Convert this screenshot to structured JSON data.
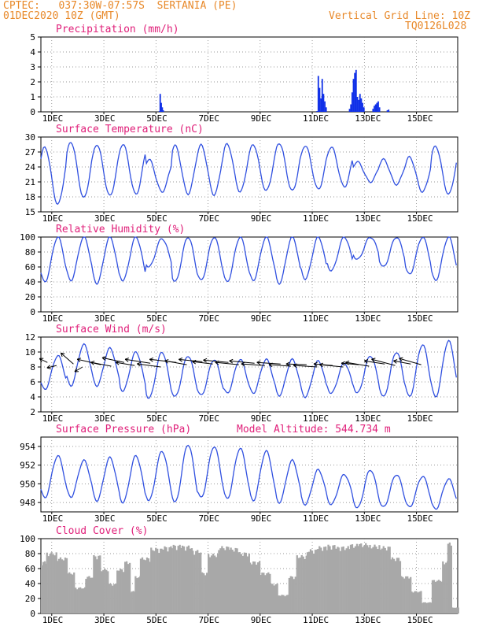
{
  "header": {
    "line1_left": "CPTEC:   037:30W-07:57S  SERTANIA (PE)",
    "line2_left": "01DEC2020 10Z (GMT)",
    "line1_right": "Vertical Grid Line: 10Z",
    "line2_right": "TQ0126L028"
  },
  "extra_label": "Model Altitude: 544.734 m",
  "colors": {
    "header": "#e8892a",
    "title": "#e0207a",
    "line": "#3050e0",
    "bar": "#1030e8",
    "cloud": "#a8a8a8",
    "arrow": "#000000"
  },
  "x_tick_labels": [
    "1DEC",
    "3DEC",
    "5DEC",
    "7DEC",
    "9DEC",
    "11DEC",
    "13DEC",
    "15DEC"
  ],
  "chart_data": [
    {
      "type": "bar",
      "title": "Precipitation (mm/h)",
      "ylim": [
        0,
        5
      ],
      "yticks": [
        "0",
        "1",
        "2",
        "3",
        "4",
        "5"
      ],
      "x_unit": "days since 01DEC 00Z",
      "points": [
        [
          4.55,
          0.05
        ],
        [
          4.58,
          1.2
        ],
        [
          4.62,
          0.6
        ],
        [
          4.66,
          0.3
        ],
        [
          4.7,
          0.1
        ],
        [
          10.6,
          0.05
        ],
        [
          10.65,
          2.4
        ],
        [
          10.7,
          1.6
        ],
        [
          10.75,
          0.9
        ],
        [
          10.8,
          2.2
        ],
        [
          10.85,
          1.2
        ],
        [
          10.9,
          0.7
        ],
        [
          10.95,
          0.3
        ],
        [
          11.85,
          0.2
        ],
        [
          11.9,
          0.5
        ],
        [
          11.95,
          1.3
        ],
        [
          12.0,
          2.2
        ],
        [
          12.05,
          2.6
        ],
        [
          12.1,
          2.8
        ],
        [
          12.15,
          1.0
        ],
        [
          12.2,
          0.8
        ],
        [
          12.25,
          1.2
        ],
        [
          12.3,
          0.9
        ],
        [
          12.35,
          0.6
        ],
        [
          12.4,
          0.3
        ],
        [
          12.75,
          0.2
        ],
        [
          12.8,
          0.4
        ],
        [
          12.85,
          0.5
        ],
        [
          12.9,
          0.6
        ],
        [
          12.95,
          0.7
        ],
        [
          13.0,
          0.3
        ],
        [
          13.3,
          0.1
        ],
        [
          13.35,
          0.15
        ]
      ]
    },
    {
      "type": "line",
      "title": "Surface Temperature (nC)",
      "ylim": [
        15,
        30
      ],
      "yticks": [
        "15",
        "18",
        "21",
        "24",
        "27",
        "30"
      ],
      "daily": [
        [
          16.5,
          28
        ],
        [
          17.8,
          29
        ],
        [
          18.2,
          28.5
        ],
        [
          18.5,
          28.6
        ],
        [
          19.0,
          25.5
        ],
        [
          18.6,
          28.3
        ],
        [
          18.4,
          28.4
        ],
        [
          19.0,
          28.6
        ],
        [
          19.2,
          28.5
        ],
        [
          19.2,
          28.8
        ],
        [
          19.5,
          28.3
        ],
        [
          20.0,
          28.0
        ],
        [
          21.0,
          25.0
        ],
        [
          20.5,
          25.5
        ],
        [
          19.0,
          26.0
        ],
        [
          18.5,
          28.2
        ],
        [
          18.8,
          28.0
        ]
      ]
    },
    {
      "type": "line",
      "title": "Relative Humidity (%)",
      "ylim": [
        0,
        100
      ],
      "yticks": [
        "0",
        "20",
        "40",
        "60",
        "80",
        "100"
      ],
      "daily": [
        [
          100,
          40
        ],
        [
          100,
          42
        ],
        [
          100,
          38
        ],
        [
          100,
          42
        ],
        [
          98,
          60
        ],
        [
          100,
          40
        ],
        [
          100,
          42
        ],
        [
          100,
          40
        ],
        [
          100,
          42
        ],
        [
          100,
          38
        ],
        [
          100,
          44
        ],
        [
          100,
          55
        ],
        [
          100,
          70
        ],
        [
          100,
          60
        ],
        [
          100,
          50
        ],
        [
          100,
          42
        ],
        [
          100,
          46
        ]
      ]
    },
    {
      "type": "line",
      "title": "Surface Wind (m/s)",
      "ylim": [
        2,
        12
      ],
      "yticks": [
        "2",
        "4",
        "6",
        "8",
        "10",
        "12"
      ],
      "daily": [
        [
          9.5,
          5.0
        ],
        [
          11.0,
          5.5
        ],
        [
          10.5,
          5.5
        ],
        [
          10.0,
          4.8
        ],
        [
          10.0,
          3.8
        ],
        [
          9.5,
          4.0
        ],
        [
          9.0,
          4.2
        ],
        [
          9.0,
          4.5
        ],
        [
          9.0,
          4.5
        ],
        [
          9.0,
          4.2
        ],
        [
          8.8,
          4.0
        ],
        [
          8.5,
          4.5
        ],
        [
          9.5,
          4.5
        ],
        [
          10.0,
          4.0
        ],
        [
          11.0,
          4.0
        ],
        [
          11.5,
          4.0
        ],
        [
          11.5,
          4.5
        ]
      ]
    },
    {
      "type": "line",
      "title": "Surface Pressure (hPa)",
      "ylim": [
        947,
        955
      ],
      "yticks": [
        "948",
        "950",
        "952",
        "954"
      ],
      "daily": [
        [
          953.0,
          948.5
        ],
        [
          952.5,
          948.6
        ],
        [
          952.8,
          948.2
        ],
        [
          953.0,
          948.0
        ],
        [
          953.5,
          948.2
        ],
        [
          954.2,
          948.0
        ],
        [
          954.0,
          948.5
        ],
        [
          953.8,
          948.4
        ],
        [
          953.5,
          948.2
        ],
        [
          952.5,
          948.0
        ],
        [
          951.5,
          947.8
        ],
        [
          951.0,
          947.8
        ],
        [
          951.5,
          947.4
        ],
        [
          951.0,
          947.5
        ],
        [
          950.8,
          947.5
        ],
        [
          950.5,
          947.3
        ],
        [
          950.0,
          947.0
        ]
      ]
    },
    {
      "type": "area",
      "title": "Cloud Cover (%)",
      "ylim": [
        0,
        100
      ],
      "yticks": [
        "0",
        "20",
        "40",
        "60",
        "80",
        "100"
      ],
      "segments": [
        [
          0.0,
          0.2,
          70
        ],
        [
          0.2,
          0.6,
          82
        ],
        [
          0.6,
          1.0,
          75
        ],
        [
          1.0,
          1.3,
          55
        ],
        [
          1.3,
          1.7,
          35
        ],
        [
          1.7,
          2.0,
          50
        ],
        [
          2.0,
          2.3,
          78
        ],
        [
          2.3,
          2.6,
          60
        ],
        [
          2.6,
          2.9,
          40
        ],
        [
          2.9,
          3.2,
          60
        ],
        [
          3.2,
          3.4,
          70
        ],
        [
          3.4,
          3.6,
          30
        ],
        [
          3.6,
          3.8,
          50
        ],
        [
          3.8,
          4.2,
          75
        ],
        [
          4.2,
          4.6,
          88
        ],
        [
          4.6,
          5.0,
          90
        ],
        [
          5.0,
          5.4,
          92
        ],
        [
          5.4,
          5.8,
          91
        ],
        [
          5.8,
          6.1,
          85
        ],
        [
          6.1,
          6.4,
          55
        ],
        [
          6.4,
          6.8,
          80
        ],
        [
          6.8,
          7.2,
          90
        ],
        [
          7.2,
          7.6,
          88
        ],
        [
          7.6,
          8.0,
          82
        ],
        [
          8.0,
          8.4,
          70
        ],
        [
          8.4,
          8.8,
          55
        ],
        [
          8.8,
          9.1,
          40
        ],
        [
          9.1,
          9.5,
          25
        ],
        [
          9.5,
          9.8,
          50
        ],
        [
          9.8,
          10.2,
          78
        ],
        [
          10.2,
          10.6,
          86
        ],
        [
          10.6,
          11.0,
          90
        ],
        [
          11.0,
          11.4,
          92
        ],
        [
          11.4,
          11.8,
          90
        ],
        [
          11.8,
          12.2,
          93
        ],
        [
          12.2,
          12.6,
          94
        ],
        [
          12.6,
          13.0,
          92
        ],
        [
          13.0,
          13.4,
          90
        ],
        [
          13.4,
          13.8,
          75
        ],
        [
          13.8,
          14.2,
          50
        ],
        [
          14.2,
          14.6,
          30
        ],
        [
          14.6,
          15.0,
          15
        ],
        [
          15.0,
          15.4,
          45
        ],
        [
          15.4,
          15.6,
          70
        ],
        [
          15.6,
          15.75,
          95
        ],
        [
          15.75,
          16.0,
          8
        ]
      ]
    }
  ],
  "wind_vectors": {
    "times": [
      0.25,
      0.6,
      1.25,
      1.6,
      2.3,
      2.7,
      3.2,
      3.6,
      4.2,
      4.6,
      5.2,
      5.6,
      6.2,
      6.6,
      7.2,
      7.6,
      8.2,
      8.6,
      9.2,
      9.6,
      10.2,
      10.6,
      11.2,
      11.6,
      12.2,
      12.6,
      13.2,
      13.6,
      14.2,
      14.6
    ],
    "speed": [
      8.6,
      8.2,
      8.4,
      8.0,
      8.3,
      8.1,
      8.6,
      8.2,
      8.5,
      8.0,
      8.6,
      8.3,
      8.7,
      8.4,
      8.6,
      8.3,
      8.5,
      8.2,
      8.4,
      8.1,
      8.3,
      8.0,
      8.2,
      8.0,
      8.3,
      8.1,
      8.4,
      8.2,
      8.4,
      8.3
    ],
    "dx": [
      -10,
      -12,
      -16,
      -10,
      -30,
      -26,
      -28,
      -24,
      -32,
      -30,
      -34,
      -28,
      -30,
      -26,
      -32,
      -30,
      -32,
      -30,
      -30,
      -28,
      -26,
      -30,
      -24,
      -30,
      -22,
      -30,
      -26,
      -30,
      -22,
      -28
    ],
    "dy": [
      -5,
      3,
      -14,
      6,
      -7,
      -5,
      -6,
      -4,
      -5,
      -4,
      -4,
      -5,
      -3,
      -3,
      -3,
      -3,
      -3,
      -2,
      -2,
      -2,
      -1,
      -2,
      -2,
      -3,
      -2,
      -5,
      -4,
      -8,
      -4,
      -8
    ]
  }
}
